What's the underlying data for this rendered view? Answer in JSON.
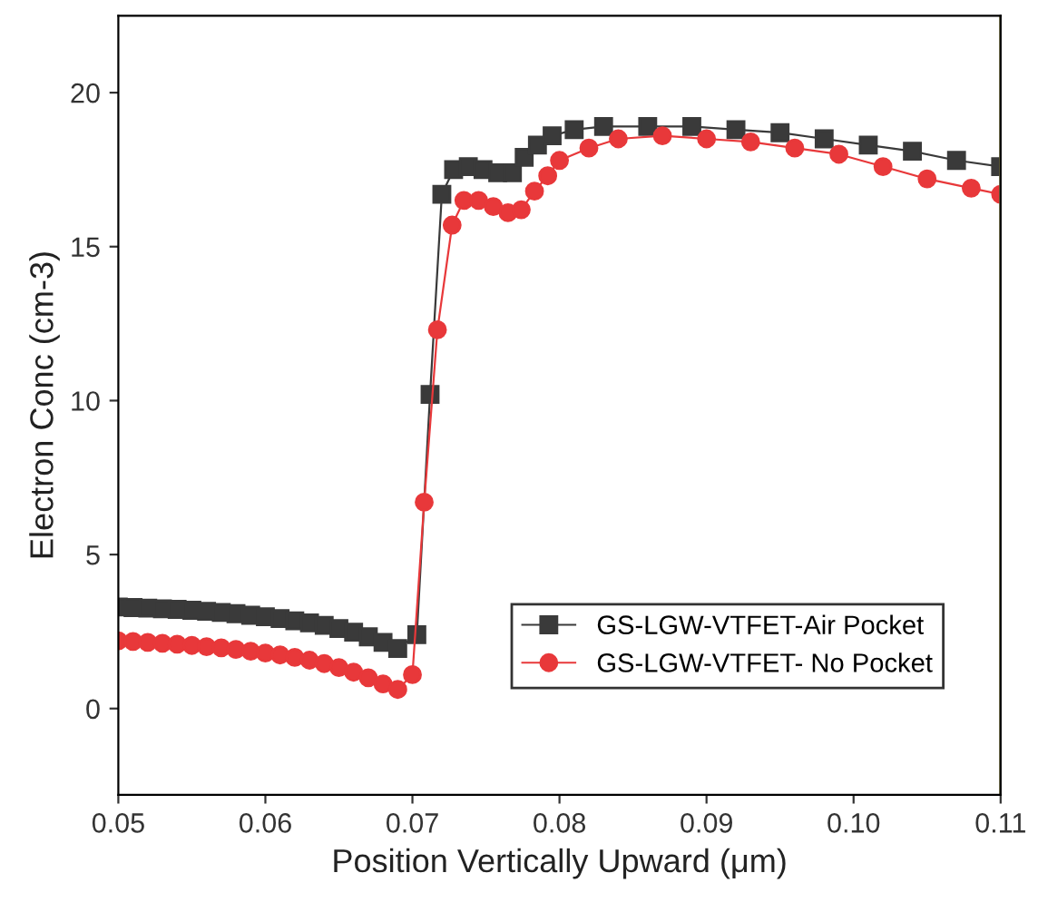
{
  "chart_data": {
    "type": "line",
    "xlabel": "Position Vertically Upward (μm)",
    "ylabel": "Electron Conc (cm-3)",
    "xlim": [
      0.05,
      0.11
    ],
    "xticks": [
      {
        "value": 0.05,
        "label": "0.05"
      },
      {
        "value": 0.06,
        "label": "0.06"
      },
      {
        "value": 0.07,
        "label": "0.07"
      },
      {
        "value": 0.08,
        "label": "0.08"
      },
      {
        "value": 0.09,
        "label": "0.09"
      },
      {
        "value": 0.1,
        "label": "0.10"
      },
      {
        "value": 0.11,
        "label": "0.11"
      }
    ],
    "ylim": [
      -2.8,
      22.5
    ],
    "yticks": [
      0,
      5,
      10,
      15,
      20
    ],
    "grid": false,
    "legend": "bottom right",
    "line_style": "solid",
    "ref_lines": [
      {
        "axis": "x",
        "value": 0.11,
        "color": "#8b8552"
      }
    ],
    "series": [
      {
        "name": "GS-LGW-VTFET-Air Pocket",
        "color": "#3a3a3a",
        "marker": "square",
        "x": [
          0.05,
          0.051,
          0.052,
          0.053,
          0.054,
          0.055,
          0.056,
          0.057,
          0.058,
          0.059,
          0.06,
          0.061,
          0.062,
          0.063,
          0.064,
          0.065,
          0.066,
          0.067,
          0.068,
          0.069,
          0.0703,
          0.0712,
          0.072,
          0.0728,
          0.0738,
          0.0748,
          0.0758,
          0.0768,
          0.0776,
          0.0785,
          0.0795,
          0.081,
          0.083,
          0.086,
          0.089,
          0.092,
          0.095,
          0.098,
          0.101,
          0.104,
          0.107,
          0.11
        ],
        "values": [
          3.3,
          3.28,
          3.26,
          3.24,
          3.22,
          3.19,
          3.16,
          3.12,
          3.08,
          3.03,
          2.98,
          2.92,
          2.85,
          2.78,
          2.7,
          2.6,
          2.48,
          2.33,
          2.15,
          1.95,
          2.4,
          10.2,
          16.7,
          17.5,
          17.6,
          17.5,
          17.4,
          17.4,
          17.9,
          18.3,
          18.6,
          18.8,
          18.9,
          18.9,
          18.9,
          18.8,
          18.7,
          18.5,
          18.3,
          18.1,
          17.8,
          17.6
        ]
      },
      {
        "name": "GS-LGW-VTFET- No Pocket",
        "color": "#e8383a",
        "marker": "circle",
        "x": [
          0.05,
          0.051,
          0.052,
          0.053,
          0.054,
          0.055,
          0.056,
          0.057,
          0.058,
          0.059,
          0.06,
          0.061,
          0.062,
          0.063,
          0.064,
          0.065,
          0.066,
          0.067,
          0.068,
          0.069,
          0.07,
          0.0708,
          0.0717,
          0.0727,
          0.0735,
          0.0745,
          0.0755,
          0.0765,
          0.0774,
          0.0783,
          0.0792,
          0.08,
          0.082,
          0.084,
          0.087,
          0.09,
          0.093,
          0.096,
          0.099,
          0.102,
          0.105,
          0.108,
          0.11
        ],
        "values": [
          2.2,
          2.18,
          2.15,
          2.12,
          2.09,
          2.05,
          2.01,
          1.97,
          1.92,
          1.86,
          1.8,
          1.74,
          1.66,
          1.57,
          1.46,
          1.33,
          1.18,
          1.0,
          0.8,
          0.62,
          1.1,
          6.7,
          12.3,
          15.7,
          16.5,
          16.5,
          16.3,
          16.1,
          16.2,
          16.8,
          17.3,
          17.8,
          18.2,
          18.5,
          18.6,
          18.5,
          18.4,
          18.2,
          18.0,
          17.6,
          17.2,
          16.9,
          16.7
        ]
      }
    ]
  }
}
